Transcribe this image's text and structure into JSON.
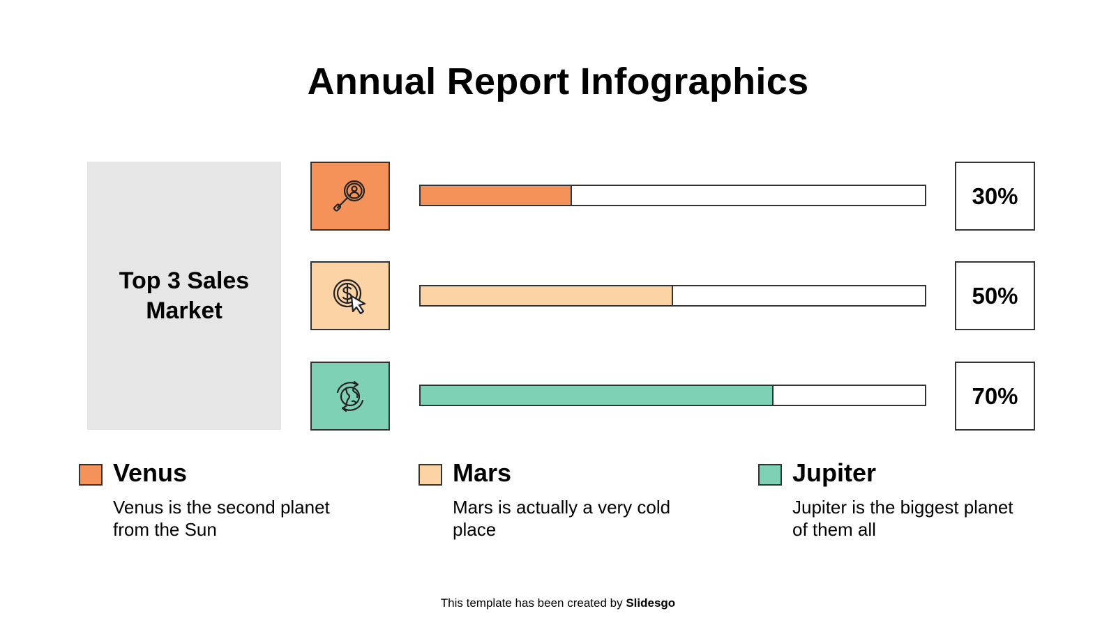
{
  "title": "Annual Report Infographics",
  "side_label": "Top 3 Sales Market",
  "colors": {
    "venus": "#f5925a",
    "mars": "#fbd3a5",
    "jupiter": "#7fd1b6",
    "panel": "#e6e6e6",
    "stroke": "#333333"
  },
  "chart_data": {
    "type": "bar",
    "orientation": "horizontal",
    "categories": [
      "Venus",
      "Mars",
      "Jupiter"
    ],
    "values": [
      30,
      50,
      70
    ],
    "value_labels": [
      "30%",
      "50%",
      "70%"
    ],
    "unit": "%",
    "xlim": [
      0,
      100
    ],
    "title": "Top 3 Sales Market",
    "icons": [
      "search-person-icon",
      "dollar-click-icon",
      "globe-cycle-icon"
    ]
  },
  "legend": [
    {
      "name": "Venus",
      "desc": "Venus is the second planet from the Sun"
    },
    {
      "name": "Mars",
      "desc": "Mars is actually a very cold place"
    },
    {
      "name": "Jupiter",
      "desc": "Jupiter is the biggest planet of them all"
    }
  ],
  "footer": {
    "prefix": "This template has been created by",
    "brand": "Slidesgo"
  }
}
